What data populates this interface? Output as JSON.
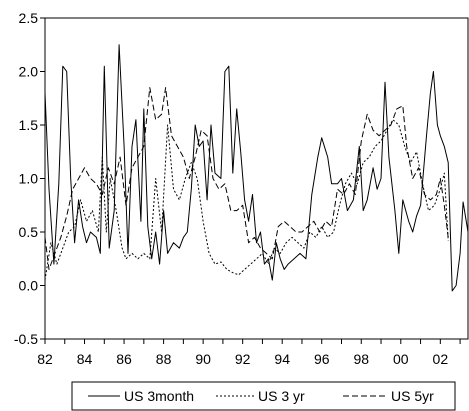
{
  "chart_data": {
    "type": "line",
    "title": "",
    "xlabel": "",
    "ylabel": "",
    "xlim": [
      1982,
      2003.4
    ],
    "ylim": [
      -0.5,
      2.5
    ],
    "y_ticks": [
      "-0.5",
      "0.0",
      "0.5",
      "1.0",
      "1.5",
      "2.0",
      "2.5"
    ],
    "x_tick_labels": [
      "82",
      "84",
      "86",
      "88",
      "90",
      "92",
      "94",
      "96",
      "98",
      "00",
      "02"
    ],
    "x_tick_values": [
      1982,
      1984,
      1986,
      1988,
      1990,
      1992,
      1994,
      1996,
      1998,
      2000,
      2002
    ],
    "grid": false,
    "legend_position": "bottom-center",
    "series": [
      {
        "name": "US 3month",
        "style": "solid",
        "points": [
          [
            1982.0,
            1.8
          ],
          [
            1982.2,
            0.9
          ],
          [
            1982.45,
            0.2
          ],
          [
            1982.7,
            0.95
          ],
          [
            1982.9,
            2.05
          ],
          [
            1983.1,
            2.0
          ],
          [
            1983.3,
            1.0
          ],
          [
            1983.5,
            0.4
          ],
          [
            1983.7,
            0.8
          ],
          [
            1983.9,
            0.55
          ],
          [
            1984.1,
            0.4
          ],
          [
            1984.3,
            0.5
          ],
          [
            1984.6,
            0.45
          ],
          [
            1984.8,
            0.3
          ],
          [
            1985.0,
            2.05
          ],
          [
            1985.25,
            0.35
          ],
          [
            1985.5,
            0.7
          ],
          [
            1985.75,
            2.25
          ],
          [
            1986.0,
            1.3
          ],
          [
            1986.2,
            0.3
          ],
          [
            1986.4,
            1.3
          ],
          [
            1986.6,
            1.55
          ],
          [
            1986.85,
            0.6
          ],
          [
            1987.0,
            1.65
          ],
          [
            1987.2,
            0.55
          ],
          [
            1987.4,
            0.25
          ],
          [
            1987.6,
            0.5
          ],
          [
            1987.8,
            0.2
          ],
          [
            1988.0,
            0.7
          ],
          [
            1988.2,
            0.3
          ],
          [
            1988.5,
            0.4
          ],
          [
            1988.8,
            0.35
          ],
          [
            1989.0,
            0.45
          ],
          [
            1989.2,
            0.5
          ],
          [
            1989.4,
            0.9
          ],
          [
            1989.6,
            1.5
          ],
          [
            1989.8,
            1.3
          ],
          [
            1990.0,
            1.35
          ],
          [
            1990.2,
            0.8
          ],
          [
            1990.4,
            1.5
          ],
          [
            1990.6,
            1.05
          ],
          [
            1990.9,
            1.0
          ],
          [
            1991.1,
            2.0
          ],
          [
            1991.3,
            2.05
          ],
          [
            1991.5,
            1.05
          ],
          [
            1991.7,
            1.65
          ],
          [
            1991.9,
            1.25
          ],
          [
            1992.1,
            0.8
          ],
          [
            1992.3,
            0.6
          ],
          [
            1992.5,
            0.85
          ],
          [
            1992.7,
            0.4
          ],
          [
            1992.9,
            0.5
          ],
          [
            1993.1,
            0.2
          ],
          [
            1993.3,
            0.25
          ],
          [
            1993.5,
            0.05
          ],
          [
            1993.7,
            0.4
          ],
          [
            1993.9,
            0.25
          ],
          [
            1994.1,
            0.15
          ],
          [
            1994.3,
            0.2
          ],
          [
            1994.6,
            0.25
          ],
          [
            1994.9,
            0.3
          ],
          [
            1995.2,
            0.25
          ],
          [
            1995.5,
            0.85
          ],
          [
            1995.8,
            1.2
          ],
          [
            1996.0,
            1.38
          ],
          [
            1996.3,
            1.2
          ],
          [
            1996.5,
            0.95
          ],
          [
            1996.8,
            0.95
          ],
          [
            1997.0,
            1.0
          ],
          [
            1997.3,
            0.7
          ],
          [
            1997.6,
            0.8
          ],
          [
            1997.9,
            1.3
          ],
          [
            1998.1,
            0.7
          ],
          [
            1998.3,
            0.8
          ],
          [
            1998.6,
            1.1
          ],
          [
            1998.8,
            0.9
          ],
          [
            1999.0,
            1.0
          ],
          [
            1999.2,
            1.9
          ],
          [
            1999.4,
            1.2
          ],
          [
            1999.7,
            0.7
          ],
          [
            1999.9,
            0.3
          ],
          [
            2000.1,
            0.8
          ],
          [
            2000.4,
            0.6
          ],
          [
            2000.6,
            0.5
          ],
          [
            2000.8,
            0.65
          ],
          [
            2001.0,
            0.75
          ],
          [
            2001.3,
            1.4
          ],
          [
            2001.5,
            1.8
          ],
          [
            2001.65,
            2.0
          ],
          [
            2001.85,
            1.5
          ],
          [
            2002.0,
            1.4
          ],
          [
            2002.2,
            1.3
          ],
          [
            2002.4,
            1.15
          ],
          [
            2002.6,
            -0.05
          ],
          [
            2002.8,
            0.0
          ],
          [
            2003.0,
            0.3
          ],
          [
            2003.15,
            0.78
          ],
          [
            2003.4,
            0.5
          ]
        ]
      },
      {
        "name": "US 3 yr",
        "style": "dotted",
        "points": [
          [
            1982.0,
            0.05
          ],
          [
            1982.3,
            0.4
          ],
          [
            1982.6,
            0.2
          ],
          [
            1982.9,
            0.35
          ],
          [
            1983.2,
            0.5
          ],
          [
            1983.5,
            0.55
          ],
          [
            1983.8,
            0.8
          ],
          [
            1984.1,
            0.6
          ],
          [
            1984.4,
            0.7
          ],
          [
            1984.7,
            0.5
          ],
          [
            1984.9,
            1.2
          ],
          [
            1985.1,
            0.5
          ],
          [
            1985.3,
            1.0
          ],
          [
            1985.6,
            0.7
          ],
          [
            1985.9,
            0.35
          ],
          [
            1986.1,
            0.25
          ],
          [
            1986.4,
            0.3
          ],
          [
            1986.7,
            0.25
          ],
          [
            1987.0,
            0.3
          ],
          [
            1987.3,
            0.25
          ],
          [
            1987.6,
            1.0
          ],
          [
            1987.9,
            0.5
          ],
          [
            1988.2,
            1.5
          ],
          [
            1988.5,
            0.9
          ],
          [
            1988.8,
            0.8
          ],
          [
            1989.1,
            1.0
          ],
          [
            1989.4,
            1.15
          ],
          [
            1989.7,
            1.0
          ],
          [
            1990.0,
            0.6
          ],
          [
            1990.3,
            0.3
          ],
          [
            1990.6,
            0.2
          ],
          [
            1990.9,
            0.22
          ],
          [
            1991.2,
            0.15
          ],
          [
            1991.5,
            0.12
          ],
          [
            1991.8,
            0.1
          ],
          [
            1992.1,
            0.15
          ],
          [
            1992.4,
            0.2
          ],
          [
            1992.7,
            0.25
          ],
          [
            1993.0,
            0.3
          ],
          [
            1993.3,
            0.2
          ],
          [
            1993.6,
            0.35
          ],
          [
            1993.9,
            0.3
          ],
          [
            1994.2,
            0.4
          ],
          [
            1994.5,
            0.45
          ],
          [
            1994.8,
            0.4
          ],
          [
            1995.1,
            0.35
          ],
          [
            1995.4,
            0.5
          ],
          [
            1995.7,
            0.45
          ],
          [
            1996.0,
            0.55
          ],
          [
            1996.3,
            0.45
          ],
          [
            1996.6,
            0.5
          ],
          [
            1996.9,
            0.75
          ],
          [
            1997.2,
            0.95
          ],
          [
            1997.5,
            1.05
          ],
          [
            1997.8,
            0.95
          ],
          [
            1998.1,
            1.15
          ],
          [
            1998.4,
            1.2
          ],
          [
            1998.7,
            1.3
          ],
          [
            1999.0,
            1.35
          ],
          [
            1999.3,
            1.45
          ],
          [
            1999.6,
            1.55
          ],
          [
            1999.9,
            1.5
          ],
          [
            2000.2,
            1.3
          ],
          [
            2000.5,
            1.15
          ],
          [
            2000.8,
            1.25
          ],
          [
            2001.1,
            0.95
          ],
          [
            2001.4,
            0.7
          ],
          [
            2001.7,
            0.75
          ],
          [
            2002.0,
            0.9
          ],
          [
            2002.2,
            1.05
          ],
          [
            2002.4,
            0.42
          ]
        ]
      },
      {
        "name": "US 5yr",
        "style": "dashed",
        "points": [
          [
            1982.0,
            0.45
          ],
          [
            1982.2,
            0.15
          ],
          [
            1982.5,
            0.3
          ],
          [
            1982.8,
            0.45
          ],
          [
            1983.1,
            0.65
          ],
          [
            1983.4,
            0.9
          ],
          [
            1983.7,
            1.0
          ],
          [
            1984.0,
            1.1
          ],
          [
            1984.3,
            1.0
          ],
          [
            1984.6,
            0.95
          ],
          [
            1984.9,
            0.85
          ],
          [
            1985.2,
            1.1
          ],
          [
            1985.5,
            0.95
          ],
          [
            1985.8,
            1.2
          ],
          [
            1986.1,
            0.75
          ],
          [
            1986.4,
            1.1
          ],
          [
            1986.7,
            1.2
          ],
          [
            1987.0,
            1.3
          ],
          [
            1987.3,
            1.85
          ],
          [
            1987.6,
            1.55
          ],
          [
            1987.9,
            1.6
          ],
          [
            1988.1,
            1.85
          ],
          [
            1988.4,
            1.4
          ],
          [
            1988.7,
            1.3
          ],
          [
            1989.0,
            1.2
          ],
          [
            1989.3,
            1.0
          ],
          [
            1989.6,
            1.2
          ],
          [
            1989.9,
            1.45
          ],
          [
            1990.2,
            1.4
          ],
          [
            1990.5,
            1.0
          ],
          [
            1990.8,
            0.9
          ],
          [
            1991.1,
            0.95
          ],
          [
            1991.4,
            0.7
          ],
          [
            1991.7,
            0.7
          ],
          [
            1992.0,
            0.75
          ],
          [
            1992.3,
            0.4
          ],
          [
            1992.6,
            0.45
          ],
          [
            1992.9,
            0.35
          ],
          [
            1993.2,
            0.3
          ],
          [
            1993.5,
            0.25
          ],
          [
            1993.8,
            0.55
          ],
          [
            1994.1,
            0.6
          ],
          [
            1994.4,
            0.55
          ],
          [
            1994.7,
            0.5
          ],
          [
            1995.0,
            0.5
          ],
          [
            1995.3,
            0.55
          ],
          [
            1995.6,
            0.6
          ],
          [
            1995.9,
            0.5
          ],
          [
            1996.2,
            0.6
          ],
          [
            1996.5,
            0.55
          ],
          [
            1996.8,
            0.9
          ],
          [
            1997.1,
            0.85
          ],
          [
            1997.4,
            0.95
          ],
          [
            1997.7,
            0.85
          ],
          [
            1998.0,
            1.35
          ],
          [
            1998.3,
            1.6
          ],
          [
            1998.6,
            1.45
          ],
          [
            1998.9,
            1.4
          ],
          [
            1999.2,
            1.45
          ],
          [
            1999.5,
            1.5
          ],
          [
            1999.8,
            1.65
          ],
          [
            2000.1,
            1.68
          ],
          [
            2000.3,
            1.3
          ],
          [
            2000.6,
            1.0
          ],
          [
            2000.9,
            1.1
          ],
          [
            2001.2,
            0.85
          ],
          [
            2001.5,
            0.8
          ],
          [
            2001.8,
            0.85
          ],
          [
            2002.0,
            1.0
          ],
          [
            2002.2,
            0.75
          ],
          [
            2002.4,
            0.45
          ]
        ]
      }
    ]
  }
}
